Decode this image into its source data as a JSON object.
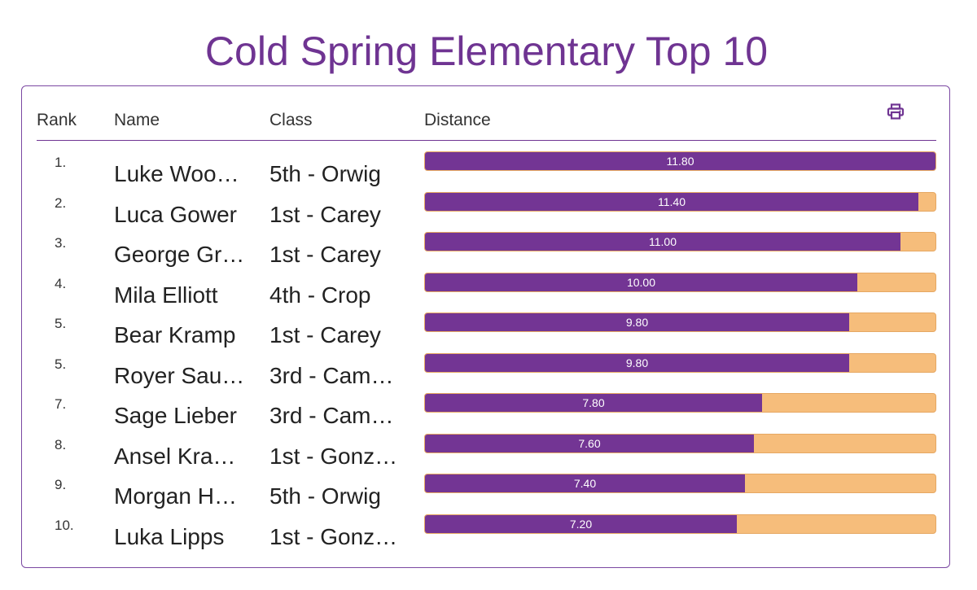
{
  "title": "Cold Spring Elementary Top 10",
  "headers": {
    "rank": "Rank",
    "name": "Name",
    "class": "Class",
    "distance": "Distance"
  },
  "print_icon": "print-icon",
  "colors": {
    "accent": "#733594",
    "bar_background": "#f6bd7b"
  },
  "max_distance": 11.8,
  "rows": [
    {
      "rank": "1.",
      "name": "Luke Woo…",
      "class": "5th - Orwig",
      "distance": 11.8,
      "distance_label": "11.80"
    },
    {
      "rank": "2.",
      "name": "Luca Gower",
      "class": "1st - Carey",
      "distance": 11.4,
      "distance_label": "11.40"
    },
    {
      "rank": "3.",
      "name": "George Gr…",
      "class": "1st - Carey",
      "distance": 11.0,
      "distance_label": "11.00"
    },
    {
      "rank": "4.",
      "name": "Mila Elliott",
      "class": "4th - Crop",
      "distance": 10.0,
      "distance_label": "10.00"
    },
    {
      "rank": "5.",
      "name": "Bear Kramp",
      "class": "1st - Carey",
      "distance": 9.8,
      "distance_label": "9.80"
    },
    {
      "rank": "5.",
      "name": "Royer Sau…",
      "class": "3rd - Cam…",
      "distance": 9.8,
      "distance_label": "9.80"
    },
    {
      "rank": "7.",
      "name": "Sage Lieber",
      "class": "3rd - Cam…",
      "distance": 7.8,
      "distance_label": "7.80"
    },
    {
      "rank": "8.",
      "name": "Ansel Kra…",
      "class": "1st - Gonz…",
      "distance": 7.6,
      "distance_label": "7.60"
    },
    {
      "rank": "9.",
      "name": "Morgan H…",
      "class": "5th - Orwig",
      "distance": 7.4,
      "distance_label": "7.40"
    },
    {
      "rank": "10.",
      "name": "Luka Lipps",
      "class": "1st - Gonz…",
      "distance": 7.2,
      "distance_label": "7.20"
    }
  ]
}
